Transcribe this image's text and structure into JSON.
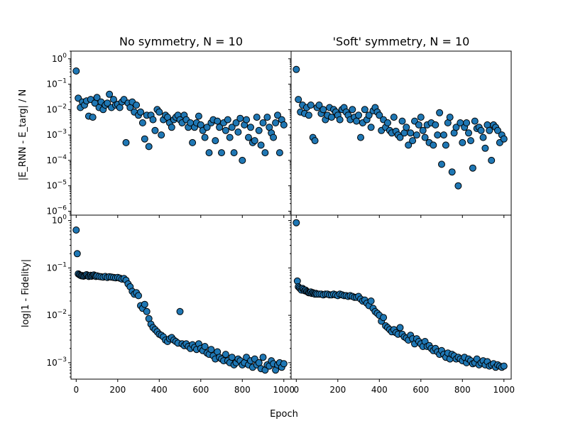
{
  "chart_data": [
    {
      "type": "scatter",
      "title": "No symmetry, N = 10",
      "ylabel": "|E_RNN - E_targ| / N",
      "yscale": "log",
      "xlim": [
        -25,
        1035
      ],
      "ylim": [
        7e-07,
        2
      ],
      "xticks": [
        "0",
        "200",
        "400",
        "600",
        "800",
        "1000"
      ],
      "yticks": [
        "10^-6",
        "10^-5",
        "10^-4",
        "10^-3",
        "10^-2",
        "10^-1",
        "10^0"
      ],
      "marker_color": "#1f77b4",
      "x": [
        0,
        10,
        20,
        30,
        40,
        50,
        60,
        70,
        80,
        90,
        100,
        110,
        120,
        130,
        140,
        150,
        160,
        170,
        180,
        190,
        200,
        210,
        220,
        230,
        240,
        250,
        260,
        270,
        280,
        290,
        300,
        310,
        320,
        330,
        340,
        350,
        360,
        370,
        380,
        390,
        400,
        410,
        420,
        430,
        440,
        450,
        460,
        470,
        480,
        490,
        500,
        510,
        520,
        530,
        540,
        550,
        560,
        570,
        580,
        590,
        600,
        610,
        620,
        630,
        640,
        650,
        660,
        670,
        680,
        690,
        700,
        710,
        720,
        730,
        740,
        750,
        760,
        770,
        780,
        790,
        800,
        810,
        820,
        830,
        840,
        850,
        860,
        870,
        880,
        890,
        900,
        910,
        920,
        930,
        940,
        950,
        960,
        970,
        980,
        990,
        1000
      ],
      "y": [
        0.33,
        0.028,
        0.012,
        0.02,
        0.015,
        0.022,
        0.0055,
        0.025,
        0.005,
        0.018,
        0.03,
        0.012,
        0.02,
        0.01,
        0.015,
        0.018,
        0.04,
        0.012,
        0.025,
        0.015,
        0.016,
        0.012,
        0.02,
        0.025,
        0.0005,
        0.018,
        0.012,
        0.02,
        0.008,
        0.015,
        0.006,
        0.008,
        0.003,
        0.0007,
        0.006,
        0.00035,
        0.006,
        0.004,
        0.0015,
        0.01,
        0.008,
        0.001,
        0.004,
        0.006,
        0.005,
        0.003,
        0.002,
        0.004,
        0.005,
        0.006,
        0.004,
        0.003,
        0.006,
        0.004,
        0.002,
        0.003,
        0.0005,
        0.002,
        0.003,
        0.0055,
        0.0025,
        0.0015,
        0.0008,
        0.002,
        0.0002,
        0.003,
        0.004,
        0.0006,
        0.0035,
        0.002,
        0.0002,
        0.003,
        0.0015,
        0.004,
        0.0008,
        0.002,
        0.0002,
        0.003,
        0.0013,
        0.0045,
        0.0001,
        0.0025,
        0.004,
        0.0008,
        0.002,
        0.0005,
        0.0006,
        0.005,
        0.0015,
        0.0004,
        0.003,
        0.0002,
        0.005,
        0.002,
        0.0012,
        0.0008,
        0.003,
        0.006,
        0.0002,
        0.004,
        0.0025
      ],
      "x_top": []
    },
    {
      "type": "scatter",
      "title": "'Soft' symmetry, N = 10",
      "yscale": "log",
      "xlim": [
        -25,
        1035
      ],
      "ylim": [
        7e-07,
        2
      ],
      "xticks": [
        "0",
        "200",
        "400",
        "600",
        "800",
        "1000"
      ],
      "marker_color": "#1f77b4",
      "x": [
        0,
        10,
        20,
        30,
        40,
        50,
        60,
        70,
        80,
        90,
        100,
        110,
        120,
        130,
        140,
        150,
        160,
        170,
        180,
        190,
        200,
        210,
        220,
        230,
        240,
        250,
        260,
        270,
        280,
        290,
        300,
        310,
        320,
        330,
        340,
        350,
        360,
        370,
        380,
        390,
        400,
        410,
        420,
        430,
        440,
        450,
        460,
        470,
        480,
        490,
        500,
        510,
        520,
        530,
        540,
        550,
        560,
        570,
        580,
        590,
        600,
        610,
        620,
        630,
        640,
        650,
        660,
        670,
        680,
        690,
        700,
        710,
        720,
        730,
        740,
        750,
        760,
        770,
        780,
        790,
        800,
        810,
        820,
        830,
        840,
        850,
        860,
        870,
        880,
        890,
        900,
        910,
        920,
        930,
        940,
        950,
        960,
        970,
        980,
        990,
        1000
      ],
      "y": [
        0.38,
        0.025,
        0.008,
        0.015,
        0.007,
        0.012,
        0.006,
        0.015,
        0.0008,
        0.0006,
        0.012,
        0.015,
        0.007,
        0.01,
        0.004,
        0.006,
        0.012,
        0.005,
        0.01,
        0.008,
        0.006,
        0.004,
        0.01,
        0.012,
        0.008,
        0.006,
        0.004,
        0.01,
        0.005,
        0.0035,
        0.006,
        0.0008,
        0.003,
        0.01,
        0.004,
        0.006,
        0.002,
        0.009,
        0.012,
        0.008,
        0.006,
        0.0015,
        0.004,
        0.002,
        0.003,
        0.0015,
        0.0012,
        0.005,
        0.0014,
        0.001,
        0.0008,
        0.0035,
        0.0012,
        0.002,
        0.0004,
        0.0012,
        0.0006,
        0.0035,
        0.001,
        0.0025,
        0.005,
        0.0015,
        0.0008,
        0.0025,
        0.0005,
        0.003,
        0.0004,
        0.0025,
        0.001,
        0.0075,
        7e-05,
        0.001,
        0.0004,
        0.003,
        0.005,
        3.5e-05,
        0.0012,
        0.002,
        1e-05,
        0.003,
        0.0005,
        0.002,
        0.003,
        0.0012,
        0.0006,
        5e-05,
        0.0035,
        0.0018,
        0.002,
        0.0015,
        0.0008,
        0.0003,
        0.0025,
        0.0015,
        0.0001,
        0.0025,
        0.002,
        0.0015,
        0.0005,
        0.001,
        0.0007
      ]
    },
    {
      "type": "scatter",
      "ylabel": "log|1 - Fidelity|",
      "xlabel": "Epoch",
      "yscale": "log",
      "xlim": [
        -25,
        1035
      ],
      "ylim": [
        0.00045,
        1.3
      ],
      "xticks": [
        "0",
        "200",
        "400",
        "600",
        "800",
        "1000"
      ],
      "yticks": [
        "10^-3",
        "10^-2",
        "10^-1",
        "10^0"
      ],
      "marker_color": "#1f77b4",
      "x": [
        0,
        5,
        10,
        15,
        20,
        25,
        30,
        35,
        40,
        45,
        50,
        55,
        60,
        65,
        70,
        75,
        80,
        85,
        90,
        95,
        100,
        110,
        120,
        130,
        140,
        150,
        160,
        170,
        180,
        190,
        200,
        210,
        220,
        230,
        240,
        250,
        260,
        270,
        280,
        290,
        300,
        310,
        320,
        330,
        340,
        350,
        360,
        370,
        380,
        390,
        400,
        410,
        420,
        430,
        440,
        450,
        460,
        470,
        480,
        490,
        500,
        510,
        520,
        530,
        540,
        550,
        560,
        570,
        580,
        590,
        600,
        610,
        620,
        630,
        640,
        650,
        660,
        670,
        680,
        690,
        700,
        710,
        720,
        730,
        740,
        750,
        760,
        770,
        780,
        790,
        800,
        810,
        820,
        830,
        840,
        850,
        860,
        870,
        880,
        890,
        900,
        910,
        920,
        930,
        940,
        950,
        960,
        970,
        980,
        990,
        1000
      ],
      "y": [
        0.63,
        0.2,
        0.075,
        0.072,
        0.07,
        0.068,
        0.069,
        0.067,
        0.068,
        0.07,
        0.072,
        0.069,
        0.066,
        0.068,
        0.07,
        0.067,
        0.069,
        0.071,
        0.068,
        0.066,
        0.068,
        0.066,
        0.065,
        0.064,
        0.066,
        0.063,
        0.065,
        0.064,
        0.063,
        0.062,
        0.063,
        0.061,
        0.058,
        0.06,
        0.055,
        0.046,
        0.04,
        0.032,
        0.028,
        0.03,
        0.026,
        0.016,
        0.014,
        0.017,
        0.012,
        0.0085,
        0.0065,
        0.0055,
        0.005,
        0.0045,
        0.004,
        0.0038,
        0.0035,
        0.003,
        0.0028,
        0.0032,
        0.0034,
        0.003,
        0.0028,
        0.0026,
        0.012,
        0.0025,
        0.0023,
        0.0025,
        0.0022,
        0.002,
        0.0024,
        0.0021,
        0.0019,
        0.0025,
        0.002,
        0.0018,
        0.0022,
        0.0016,
        0.0015,
        0.0019,
        0.0014,
        0.0012,
        0.0017,
        0.0013,
        0.0012,
        0.0011,
        0.0015,
        0.0011,
        0.001,
        0.0013,
        0.0009,
        0.001,
        0.0012,
        0.0011,
        0.0009,
        0.001,
        0.0013,
        0.0009,
        0.0011,
        0.0008,
        0.0012,
        0.0009,
        0.001,
        0.00075,
        0.0013,
        0.0007,
        0.0009,
        0.00085,
        0.0011,
        0.00095,
        0.0007,
        0.0009,
        0.001,
        0.0008,
        0.00095
      ]
    },
    {
      "type": "scatter",
      "xlabel": "Epoch",
      "yscale": "log",
      "xlim": [
        -25,
        1035
      ],
      "ylim": [
        0.00045,
        1.3
      ],
      "xticks": [
        "0",
        "200",
        "400",
        "600",
        "800",
        "1000"
      ],
      "marker_color": "#1f77b4",
      "x": [
        0,
        5,
        10,
        15,
        20,
        25,
        30,
        35,
        40,
        45,
        50,
        55,
        60,
        65,
        70,
        75,
        80,
        85,
        90,
        95,
        100,
        110,
        120,
        130,
        140,
        150,
        160,
        170,
        180,
        190,
        200,
        210,
        220,
        230,
        240,
        250,
        260,
        270,
        280,
        290,
        300,
        310,
        320,
        330,
        340,
        350,
        360,
        370,
        380,
        390,
        400,
        410,
        420,
        430,
        440,
        450,
        460,
        470,
        480,
        490,
        500,
        510,
        520,
        530,
        540,
        550,
        560,
        570,
        580,
        590,
        600,
        610,
        620,
        630,
        640,
        650,
        660,
        670,
        680,
        690,
        700,
        710,
        720,
        730,
        740,
        750,
        760,
        770,
        780,
        790,
        800,
        810,
        820,
        830,
        840,
        850,
        860,
        870,
        880,
        890,
        900,
        910,
        920,
        930,
        940,
        950,
        960,
        970,
        980,
        990,
        1000
      ],
      "y": [
        0.9,
        0.053,
        0.04,
        0.038,
        0.036,
        0.034,
        0.037,
        0.035,
        0.033,
        0.034,
        0.032,
        0.031,
        0.03,
        0.03,
        0.031,
        0.029,
        0.03,
        0.029,
        0.028,
        0.029,
        0.028,
        0.028,
        0.028,
        0.027,
        0.028,
        0.028,
        0.027,
        0.027,
        0.028,
        0.027,
        0.026,
        0.028,
        0.027,
        0.026,
        0.026,
        0.025,
        0.026,
        0.025,
        0.024,
        0.024,
        0.025,
        0.022,
        0.02,
        0.021,
        0.018,
        0.016,
        0.02,
        0.014,
        0.012,
        0.011,
        0.01,
        0.0075,
        0.009,
        0.006,
        0.0055,
        0.005,
        0.0045,
        0.005,
        0.0043,
        0.004,
        0.0055,
        0.004,
        0.0035,
        0.0033,
        0.003,
        0.0038,
        0.0032,
        0.0025,
        0.0032,
        0.0028,
        0.0025,
        0.0022,
        0.0028,
        0.0022,
        0.0023,
        0.002,
        0.0018,
        0.002,
        0.0017,
        0.0015,
        0.0018,
        0.0015,
        0.0013,
        0.0016,
        0.0012,
        0.0015,
        0.0014,
        0.0012,
        0.0013,
        0.0012,
        0.0011,
        0.0013,
        0.001,
        0.0012,
        0.0011,
        0.00095,
        0.001,
        0.0012,
        0.0009,
        0.001,
        0.0011,
        0.0009,
        0.00105,
        0.00085,
        0.0009,
        0.00095,
        0.0008,
        0.0009,
        0.00085,
        0.0008,
        0.00085
      ]
    }
  ]
}
